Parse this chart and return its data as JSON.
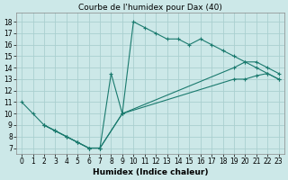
{
  "title": "Courbe de l'humidex pour Dax (40)",
  "xlabel": "Humidex (Indice chaleur)",
  "bg_color": "#cce8e8",
  "grid_color": "#aacfcf",
  "line_color": "#1a7a6e",
  "xlim": [
    -0.5,
    23.5
  ],
  "ylim": [
    6.5,
    18.8
  ],
  "xticks": [
    0,
    1,
    2,
    3,
    4,
    5,
    6,
    7,
    8,
    9,
    10,
    11,
    12,
    13,
    14,
    15,
    16,
    17,
    18,
    19,
    20,
    21,
    22,
    23
  ],
  "yticks": [
    7,
    8,
    9,
    10,
    11,
    12,
    13,
    14,
    15,
    16,
    17,
    18
  ],
  "series1_x": [
    0,
    1,
    2,
    3,
    4,
    5,
    6,
    7,
    8,
    9,
    10,
    11,
    12,
    13,
    14,
    15,
    16,
    17,
    18,
    19,
    20,
    21,
    22,
    23
  ],
  "series1_y": [
    11,
    10,
    9,
    8.5,
    8,
    7.5,
    7,
    7,
    13.5,
    10,
    18,
    17.5,
    17,
    16.5,
    16.5,
    16,
    16.5,
    16,
    15.5,
    15,
    14.5,
    14,
    13.5,
    13
  ],
  "series2_x": [
    2,
    3,
    4,
    5,
    6,
    7,
    9,
    19,
    20,
    21,
    22,
    23
  ],
  "series2_y": [
    9,
    8.5,
    8,
    7.5,
    7,
    7,
    10,
    13,
    13,
    13.3,
    13.5,
    13
  ],
  "series3_x": [
    2,
    3,
    4,
    5,
    6,
    7,
    9,
    19,
    20,
    21,
    22,
    23
  ],
  "series3_y": [
    9,
    8.5,
    8,
    7.5,
    7,
    7,
    10,
    14,
    14.5,
    14.5,
    14,
    13.5
  ],
  "title_fontsize": 6.5,
  "axis_fontsize": 6.5,
  "tick_fontsize": 5.5
}
